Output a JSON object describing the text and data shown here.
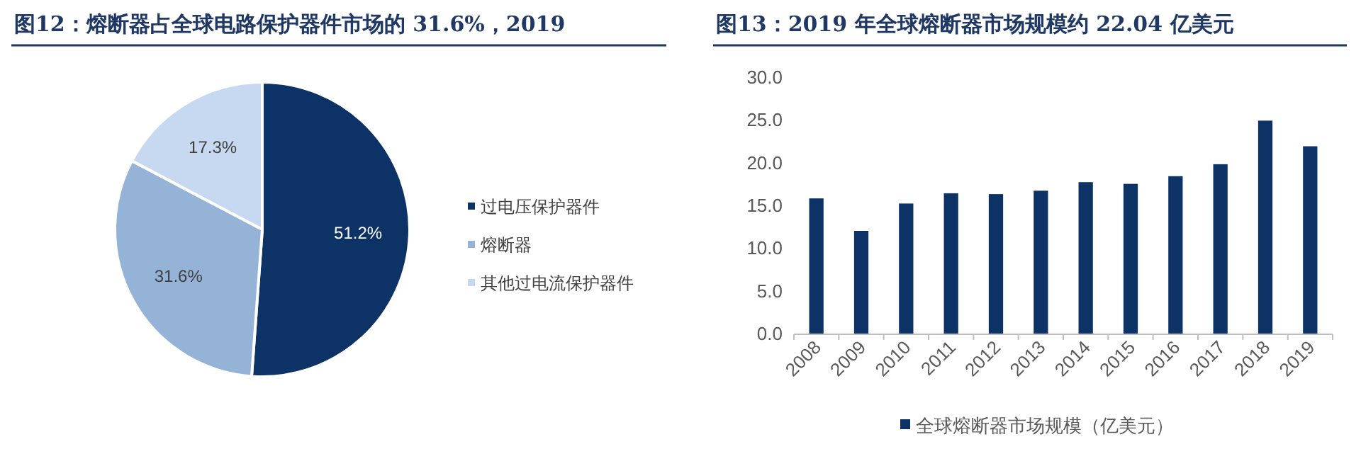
{
  "chart_data": [
    {
      "type": "pie",
      "title": "图12：熔断器占全球电路保护器件市场的 31.6%，2019",
      "categories": [
        "过电压保护器件",
        "熔断器",
        "其他过电流保护器件"
      ],
      "values": [
        51.2,
        31.6,
        17.3
      ],
      "value_labels": [
        "51.2%",
        "31.6%",
        "17.3%"
      ],
      "colors": [
        "#0d3366",
        "#95b3d7",
        "#c6d9f0"
      ],
      "legend": "right"
    },
    {
      "type": "bar",
      "title": "图13：2019 年全球熔断器市场规模约 22.04 亿美元",
      "categories": [
        "2008",
        "2009",
        "2010",
        "2011",
        "2012",
        "2013",
        "2014",
        "2015",
        "2016",
        "2017",
        "2018",
        "2019"
      ],
      "series": [
        {
          "name": "全球熔断器市场规模（亿美元）",
          "color": "#0d3366",
          "values": [
            15.9,
            12.1,
            15.3,
            16.5,
            16.4,
            16.8,
            17.8,
            17.6,
            18.5,
            19.9,
            25.0,
            22.0
          ]
        }
      ],
      "ylim": [
        0,
        30
      ],
      "yticks": [
        {
          "value": 0,
          "label": "0.0"
        },
        {
          "value": 5,
          "label": "5.0"
        },
        {
          "value": 10,
          "label": "10.0"
        },
        {
          "value": 15,
          "label": "15.0"
        },
        {
          "value": 20,
          "label": "20.0"
        },
        {
          "value": 25,
          "label": "25.0"
        },
        {
          "value": 30,
          "label": "30.0"
        }
      ],
      "legend": "bottom"
    }
  ]
}
